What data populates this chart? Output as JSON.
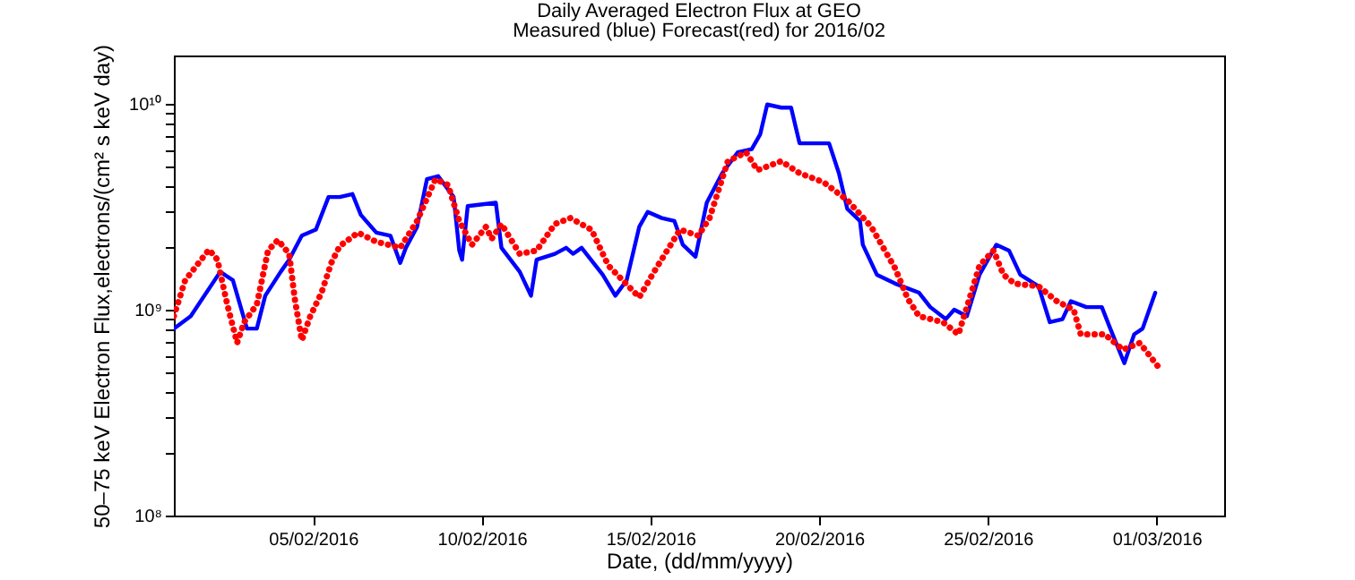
{
  "chart_data": {
    "type": "line",
    "title": "Daily Averaged Electron Flux at GEO",
    "subtitle": "Measured (blue) Forecast(red) for 2016/02",
    "xlabel": "Date, (dd/mm/yyyy)",
    "ylabel": "50–75 keV Electron Flux,electrons/(cm² s keV day)",
    "xlim": [
      "2016-01-31T21:00",
      "2016-03-03T00:00"
    ],
    "xticks": [
      {
        "value": "2016-02-05",
        "label": "05/02/2016"
      },
      {
        "value": "2016-02-10",
        "label": "10/02/2016"
      },
      {
        "value": "2016-02-15",
        "label": "15/02/2016"
      },
      {
        "value": "2016-02-20",
        "label": "20/02/2016"
      },
      {
        "value": "2016-02-25",
        "label": "25/02/2016"
      },
      {
        "value": "2016-03-01",
        "label": "01/03/2016"
      }
    ],
    "ylim": [
      100000000.0,
      17200000000.0
    ],
    "log": true,
    "yticks": [
      {
        "value": 100000000.0,
        "label": "10⁸"
      },
      {
        "value": 200000000.0,
        "label": null
      },
      {
        "value": 300000000.0,
        "label": null
      },
      {
        "value": 400000000.0,
        "label": null
      },
      {
        "value": 500000000.0,
        "label": null
      },
      {
        "value": 600000000.0,
        "label": null
      },
      {
        "value": 700000000.0,
        "label": null
      },
      {
        "value": 800000000.0,
        "label": null
      },
      {
        "value": 900000000.0,
        "label": null
      },
      {
        "value": 1000000000.0,
        "label": "10⁹"
      },
      {
        "value": 2000000000.0,
        "label": null
      },
      {
        "value": 3000000000.0,
        "label": null
      },
      {
        "value": 4000000000.0,
        "label": null
      },
      {
        "value": 5000000000.0,
        "label": null
      },
      {
        "value": 6000000000.0,
        "label": null
      },
      {
        "value": 7000000000.0,
        "label": null
      },
      {
        "value": 8000000000.0,
        "label": null
      },
      {
        "value": 9000000000.0,
        "label": null
      },
      {
        "value": 10000000000.0,
        "label": "10¹⁰"
      }
    ],
    "grid": false,
    "series": [
      {
        "color": "#0000ff",
        "line_style": "solid",
        "x": [
          "2016-01-31T21:00",
          "2016-02-01T09:00",
          "2016-02-02T06:00",
          "2016-02-02T15:00",
          "2016-02-03T01:00",
          "2016-02-03T08:00",
          "2016-02-03T14:00",
          "2016-02-04T01:00",
          "2016-02-04T07:00",
          "2016-02-04T16:00",
          "2016-02-05T02:00",
          "2016-02-05T11:00",
          "2016-02-05T19:00",
          "2016-02-06T04:00",
          "2016-02-06T10:00",
          "2016-02-06T21:00",
          "2016-02-07T07:00",
          "2016-02-07T14:00",
          "2016-02-07T18:00",
          "2016-02-08T02:00",
          "2016-02-08T09:00",
          "2016-02-08T17:00",
          "2016-02-09T04:00",
          "2016-02-09T08:00",
          "2016-02-09T10:00",
          "2016-02-09T14:00",
          "2016-02-10T10:00",
          "2016-02-10T14:00",
          "2016-02-11T03:00",
          "2016-02-11T11:00",
          "2016-02-11T15:00",
          "2016-02-12T04:00",
          "2016-02-12T12:00",
          "2016-02-12T17:00",
          "2016-02-12T23:00",
          "2016-02-13T14:00",
          "2016-02-13T23:00",
          "2016-02-14T07:00",
          "2016-02-14T16:00",
          "2016-02-14T22:00",
          "2016-02-15T08:00",
          "2016-02-15T17:00",
          "2016-02-15T23:00",
          "2016-02-16T08:00",
          "2016-02-16T16:00",
          "2016-02-17T03:00",
          "2016-02-17T14:00",
          "2016-02-18T00:00",
          "2016-02-18T06:00",
          "2016-02-18T11:00",
          "2016-02-18T21:00",
          "2016-02-19T04:00",
          "2016-02-19T10:00",
          "2016-02-20T07:00",
          "2016-02-20T14:00",
          "2016-02-20T20:00",
          "2016-02-21T05:00",
          "2016-02-21T07:00",
          "2016-02-21T17:00",
          "2016-02-22T06:00",
          "2016-02-22T23:00",
          "2016-02-23T07:00",
          "2016-02-23T18:00",
          "2016-02-24T00:00",
          "2016-02-24T09:00",
          "2016-02-24T18:00",
          "2016-02-25T06:00",
          "2016-02-25T15:00",
          "2016-02-25T23:00",
          "2016-02-26T12:00",
          "2016-02-26T20:00",
          "2016-02-27T05:00",
          "2016-02-27T11:00",
          "2016-02-27T22:00",
          "2016-02-28T09:00",
          "2016-02-28T15:00",
          "2016-02-29T01:00",
          "2016-02-29T08:00",
          "2016-02-29T14:00",
          "2016-02-29T23:00"
        ],
        "values": [
          810000000.0,
          930000000.0,
          1530000000.0,
          1390000000.0,
          810000000.0,
          810000000.0,
          1170000000.0,
          1530000000.0,
          1750000000.0,
          2290000000.0,
          2450000000.0,
          3530000000.0,
          3530000000.0,
          3650000000.0,
          2890000000.0,
          2370000000.0,
          2290000000.0,
          1690000000.0,
          2000000000.0,
          2530000000.0,
          4310000000.0,
          4460000000.0,
          3530000000.0,
          1940000000.0,
          1750000000.0,
          3190000000.0,
          3310000000.0,
          2000000000.0,
          1530000000.0,
          1170000000.0,
          1750000000.0,
          1870000000.0,
          2000000000.0,
          1870000000.0,
          2000000000.0,
          1480000000.0,
          1170000000.0,
          1390000000.0,
          2530000000.0,
          2990000000.0,
          2790000000.0,
          2700000000.0,
          2070000000.0,
          1810000000.0,
          3310000000.0,
          4610000000.0,
          5820000000.0,
          6030000000.0,
          7110000000.0,
          9940000000.0,
          9600000000.0,
          9600000000.0,
          6440000000.0,
          6440000000.0,
          4610000000.0,
          3090000000.0,
          2700000000.0,
          2070000000.0,
          1480000000.0,
          1340000000.0,
          1210000000.0,
          1030000000.0,
          900000000.0,
          1000000000.0,
          930000000.0,
          1480000000.0,
          2070000000.0,
          1940000000.0,
          1480000000.0,
          1300000000.0,
          870000000.0,
          900000000.0,
          1100000000.0,
          1030000000.0,
          1030000000.0,
          810000000.0,
          550000000.0,
          760000000.0,
          810000000.0,
          1210000000.0
        ]
      },
      {
        "color": "#ff0000",
        "line_style": "dotted",
        "x": [
          "2016-01-31T21:00",
          "2016-02-01T05:00",
          "2016-02-01T22:00",
          "2016-02-02T04:00",
          "2016-02-02T11:00",
          "2016-02-02T18:00",
          "2016-02-02T23:00",
          "2016-02-03T08:00",
          "2016-02-03T16:00",
          "2016-02-03T23:00",
          "2016-02-04T07:00",
          "2016-02-04T11:00",
          "2016-02-04T16:00",
          "2016-02-04T22:00",
          "2016-02-05T06:00",
          "2016-02-05T13:00",
          "2016-02-05T19:00",
          "2016-02-06T08:00",
          "2016-02-06T21:00",
          "2016-02-07T14:00",
          "2016-02-08T02:00",
          "2016-02-08T15:00",
          "2016-02-09T00:00",
          "2016-02-09T08:00",
          "2016-02-09T17:00",
          "2016-02-10T03:00",
          "2016-02-10T07:00",
          "2016-02-10T14:00",
          "2016-02-11T03:00",
          "2016-02-11T15:00",
          "2016-02-12T04:00",
          "2016-02-12T15:00",
          "2016-02-13T06:00",
          "2016-02-13T18:00",
          "2016-02-14T16:00",
          "2016-02-15T04:00",
          "2016-02-15T21:00",
          "2016-02-16T10:00",
          "2016-02-16T18:00",
          "2016-02-17T07:00",
          "2016-02-17T20:00",
          "2016-02-18T04:00",
          "2016-02-18T21:00",
          "2016-02-19T10:00",
          "2016-02-20T03:00",
          "2016-02-20T20:00",
          "2016-02-21T13:00",
          "2016-02-22T06:00",
          "2016-02-22T15:00",
          "2016-02-22T23:00",
          "2016-02-23T16:00",
          "2016-02-24T03:00",
          "2016-02-24T09:00",
          "2016-02-24T18:00",
          "2016-02-25T04:00",
          "2016-02-25T11:00",
          "2016-02-25T19:00",
          "2016-02-26T12:00",
          "2016-02-27T01:00",
          "2016-02-27T13:00",
          "2016-02-27T18:00",
          "2016-02-28T11:00",
          "2016-02-29T00:00",
          "2016-02-29T12:00",
          "2016-03-01T01:00"
        ],
        "values": [
          930000000.0,
          1390000000.0,
          1960000000.0,
          1750000000.0,
          1060000000.0,
          690000000.0,
          870000000.0,
          1060000000.0,
          1940000000.0,
          2180000000.0,
          1870000000.0,
          1130000000.0,
          710000000.0,
          930000000.0,
          1210000000.0,
          1690000000.0,
          2040000000.0,
          2370000000.0,
          2140000000.0,
          2000000000.0,
          2700000000.0,
          4310000000.0,
          4040000000.0,
          2700000000.0,
          2070000000.0,
          2530000000.0,
          2210000000.0,
          2610000000.0,
          1870000000.0,
          1940000000.0,
          2610000000.0,
          2790000000.0,
          2450000000.0,
          1640000000.0,
          1150000000.0,
          1590000000.0,
          2450000000.0,
          2290000000.0,
          2790000000.0,
          5270000000.0,
          5820000000.0,
          4770000000.0,
          5270000000.0,
          4610000000.0,
          4170000000.0,
          3410000000.0,
          2530000000.0,
          1590000000.0,
          1130000000.0,
          930000000.0,
          870000000.0,
          760000000.0,
          1030000000.0,
          1640000000.0,
          1940000000.0,
          1480000000.0,
          1340000000.0,
          1300000000.0,
          1100000000.0,
          1000000000.0,
          760000000.0,
          760000000.0,
          640000000.0,
          690000000.0,
          530000000.0
        ]
      }
    ]
  }
}
